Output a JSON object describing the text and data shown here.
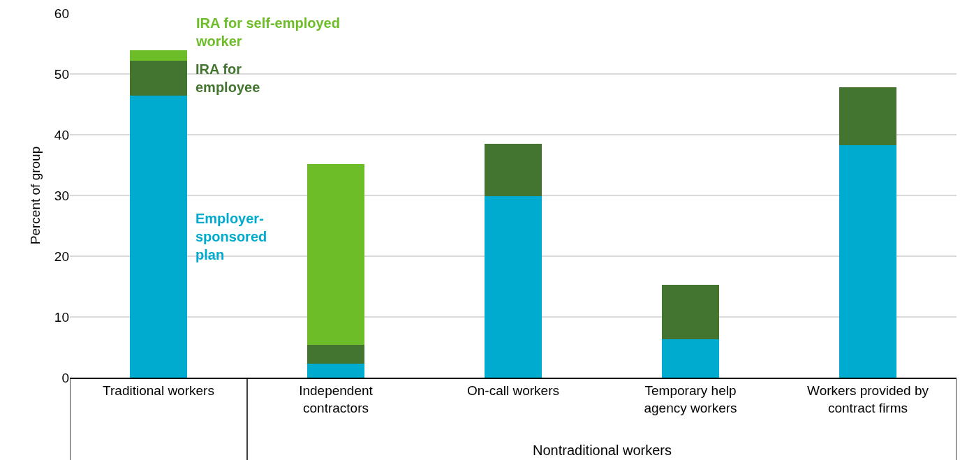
{
  "chart_data": {
    "type": "bar",
    "stacked": true,
    "ylabel": "Percent of group",
    "categories": [
      "Traditional workers",
      "Independent contractors",
      "On-call workers",
      "Temporary help agency workers",
      "Workers provided by contract firms"
    ],
    "series": [
      {
        "name": "Employer-sponsored plan",
        "color": "#00abd0",
        "values": [
          46.4,
          2.3,
          29.9,
          6.3,
          38.3
        ]
      },
      {
        "name": "IRA for employee",
        "color": "#437530",
        "values": [
          5.8,
          3.1,
          8.6,
          9.0,
          9.5
        ]
      },
      {
        "name": "IRA for self-employed worker",
        "color": "#6cbd27",
        "values": [
          1.7,
          29.8,
          null,
          null,
          null
        ]
      }
    ],
    "ylim": [
      0,
      60
    ],
    "yticks": [
      0,
      10,
      20,
      30,
      40,
      50,
      60
    ],
    "grid": "y",
    "legend": false,
    "annotations": [
      "Nontraditional workers"
    ]
  }
}
